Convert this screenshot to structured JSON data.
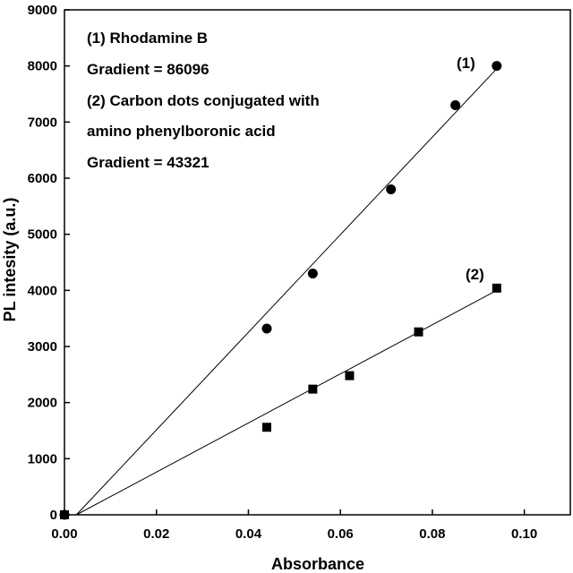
{
  "chart_data": {
    "type": "scatter",
    "xlabel": "Absorbance",
    "ylabel": "PL intesity (a.u.)",
    "xlim": [
      0.0,
      0.11
    ],
    "ylim": [
      0,
      9000
    ],
    "x_ticks": [
      "0.00",
      "0.02",
      "0.04",
      "0.06",
      "0.08",
      "0.10"
    ],
    "y_ticks": [
      "0",
      "1000",
      "2000",
      "3000",
      "4000",
      "5000",
      "6000",
      "7000",
      "8000",
      "9000"
    ],
    "annotations": [
      "(1) Rhodamine B",
      "Gradient = 86096",
      "(2) Carbon dots conjugated with",
      "amino phenylboronic acid",
      "Gradient = 43321"
    ],
    "series": [
      {
        "name": "(1)",
        "marker": "circle",
        "points": [
          [
            0.0,
            0
          ],
          [
            0.044,
            3320
          ],
          [
            0.054,
            4300
          ],
          [
            0.071,
            5800
          ],
          [
            0.085,
            7300
          ],
          [
            0.094,
            8000
          ]
        ],
        "fit": [
          [
            0.0026,
            0
          ],
          [
            0.094,
            7950
          ]
        ]
      },
      {
        "name": "(2)",
        "marker": "square",
        "points": [
          [
            0.0,
            0
          ],
          [
            0.044,
            1560
          ],
          [
            0.054,
            2240
          ],
          [
            0.062,
            2480
          ],
          [
            0.077,
            3260
          ],
          [
            0.094,
            4040
          ]
        ],
        "fit": [
          [
            0.0026,
            0
          ],
          [
            0.094,
            4000
          ]
        ]
      }
    ],
    "grid": false,
    "legend": "none"
  }
}
